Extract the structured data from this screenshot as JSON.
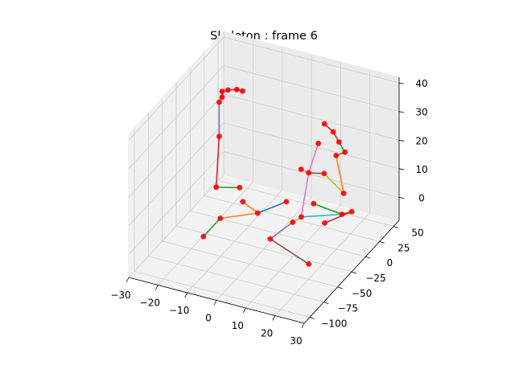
{
  "chart_data": {
    "type": "scatter",
    "projection": "3d",
    "title": "Skeleton : frame 6",
    "xlabel": "",
    "ylabel": "",
    "zlabel": "",
    "xlim": [
      -30,
      30
    ],
    "ylim": [
      -110,
      60
    ],
    "zlim": [
      -8,
      42
    ],
    "x_ticks": [
      -30,
      -20,
      -10,
      0,
      10,
      20,
      30
    ],
    "y_ticks": [
      -100,
      -75,
      -50,
      -25,
      0,
      25,
      50
    ],
    "z_ticks": [
      0,
      10,
      20,
      30,
      40
    ],
    "x_tick_labels": [
      "−30",
      "−20",
      "−10",
      "0",
      "10",
      "20",
      "30"
    ],
    "y_tick_labels": [
      "−100",
      "−75",
      "−50",
      "−25",
      "0",
      "25",
      "50"
    ],
    "z_tick_labels": [
      "0",
      "10",
      "20",
      "30",
      "40"
    ],
    "grid": true,
    "joint_color": "#ff0000",
    "bone_colors": {
      "blue": "#1f77b4",
      "orange": "#ff7f0e",
      "green": "#2ca02c",
      "red": "#d62728",
      "purple": "#9467bd",
      "brown": "#8c564b",
      "pink": "#e377c2",
      "olive": "#bcbd22",
      "cyan": "#17becf"
    },
    "joints": [
      {
        "id": "j0",
        "x": -14,
        "y": -60,
        "z": 0
      },
      {
        "id": "j1",
        "x": 22,
        "y": -60,
        "z": 0
      },
      {
        "id": "j2",
        "x": 8,
        "y": 22,
        "z": 0
      },
      {
        "id": "j3",
        "x": 20,
        "y": 10,
        "z": 2
      },
      {
        "id": "j4",
        "x": -14,
        "y": -30,
        "z": 0
      },
      {
        "id": "j5",
        "x": 5,
        "y": -40,
        "z": 0
      },
      {
        "id": "j6",
        "x": -5,
        "y": -10,
        "z": 0
      },
      {
        "id": "j7",
        "x": -12,
        "y": 0,
        "z": 0
      },
      {
        "id": "j8",
        "x": 0,
        "y": 15,
        "z": 0
      },
      {
        "id": "j9",
        "x": 7,
        "y": -10,
        "z": 0
      },
      {
        "id": "j10",
        "x": 8,
        "y": 0,
        "z": 0
      },
      {
        "id": "j11",
        "x": 16,
        "y": 0,
        "z": 0
      },
      {
        "id": "j12",
        "x": -23,
        "y": 10,
        "z": 0
      },
      {
        "id": "j13",
        "x": -15,
        "y": 10,
        "z": 2
      },
      {
        "id": "j14",
        "x": -22,
        "y": 10,
        "z": 18
      },
      {
        "id": "j15",
        "x": 9,
        "y": 8,
        "z": 14
      },
      {
        "id": "j16",
        "x": 10,
        "y": 20,
        "z": 22
      },
      {
        "id": "j17",
        "x": 12,
        "y": 20,
        "z": 12
      },
      {
        "id": "j18",
        "x": 6,
        "y": 10,
        "z": 14
      },
      {
        "id": "j19",
        "x": 22,
        "y": 17,
        "z": 2
      },
      {
        "id": "j20",
        "x": 21,
        "y": 8,
        "z": 10
      },
      {
        "id": "j21",
        "x": -22,
        "y": 10,
        "z": 30
      },
      {
        "id": "j22",
        "x": -21,
        "y": 10,
        "z": 34
      },
      {
        "id": "j23",
        "x": -19,
        "y": 10,
        "z": 35
      },
      {
        "id": "j24",
        "x": -16,
        "y": 10,
        "z": 36
      },
      {
        "id": "j25",
        "x": -14,
        "y": 10,
        "z": 36
      },
      {
        "id": "j26",
        "x": -21,
        "y": 10,
        "z": 32
      },
      {
        "id": "j27",
        "x": 14,
        "y": 10,
        "z": 32
      },
      {
        "id": "j28",
        "x": 17,
        "y": 10,
        "z": 30
      },
      {
        "id": "j29",
        "x": 19,
        "y": 10,
        "z": 27
      },
      {
        "id": "j30",
        "x": 21,
        "y": 10,
        "z": 24
      },
      {
        "id": "j31",
        "x": 18,
        "y": 10,
        "z": 22
      }
    ],
    "bones": [
      {
        "from": "j0",
        "to": "j4",
        "color": "green"
      },
      {
        "from": "j4",
        "to": "j6",
        "color": "orange"
      },
      {
        "from": "j6",
        "to": "j7",
        "color": "orange"
      },
      {
        "from": "j6",
        "to": "j8",
        "color": "blue"
      },
      {
        "from": "j1",
        "to": "j5",
        "color": "brown"
      },
      {
        "from": "j5",
        "to": "j9",
        "color": "purple"
      },
      {
        "from": "j9",
        "to": "j10",
        "color": "olive"
      },
      {
        "from": "j10",
        "to": "j3",
        "color": "cyan"
      },
      {
        "from": "j3",
        "to": "j2",
        "color": "green"
      },
      {
        "from": "j3",
        "to": "j19",
        "color": "red"
      },
      {
        "from": "j12",
        "to": "j13",
        "color": "green"
      },
      {
        "from": "j12",
        "to": "j14",
        "color": "red"
      },
      {
        "from": "j14",
        "to": "j21",
        "color": "purple"
      },
      {
        "from": "j21",
        "to": "j26",
        "color": "olive"
      },
      {
        "from": "j26",
        "to": "j22",
        "color": "red"
      },
      {
        "from": "j22",
        "to": "j23",
        "color": "red"
      },
      {
        "from": "j23",
        "to": "j24",
        "color": "red"
      },
      {
        "from": "j24",
        "to": "j25",
        "color": "red"
      },
      {
        "from": "j10",
        "to": "j15",
        "color": "pink"
      },
      {
        "from": "j15",
        "to": "j18",
        "color": "pink"
      },
      {
        "from": "j15",
        "to": "j16",
        "color": "pink"
      },
      {
        "from": "j15",
        "to": "j17",
        "color": "brown"
      },
      {
        "from": "j17",
        "to": "j20",
        "color": "olive"
      },
      {
        "from": "j20",
        "to": "j31",
        "color": "orange"
      },
      {
        "from": "j31",
        "to": "j30",
        "color": "green"
      },
      {
        "from": "j30",
        "to": "j29",
        "color": "green"
      },
      {
        "from": "j29",
        "to": "j28",
        "color": "red"
      },
      {
        "from": "j28",
        "to": "j27",
        "color": "red"
      },
      {
        "from": "j11",
        "to": "j19",
        "color": "red"
      }
    ]
  }
}
